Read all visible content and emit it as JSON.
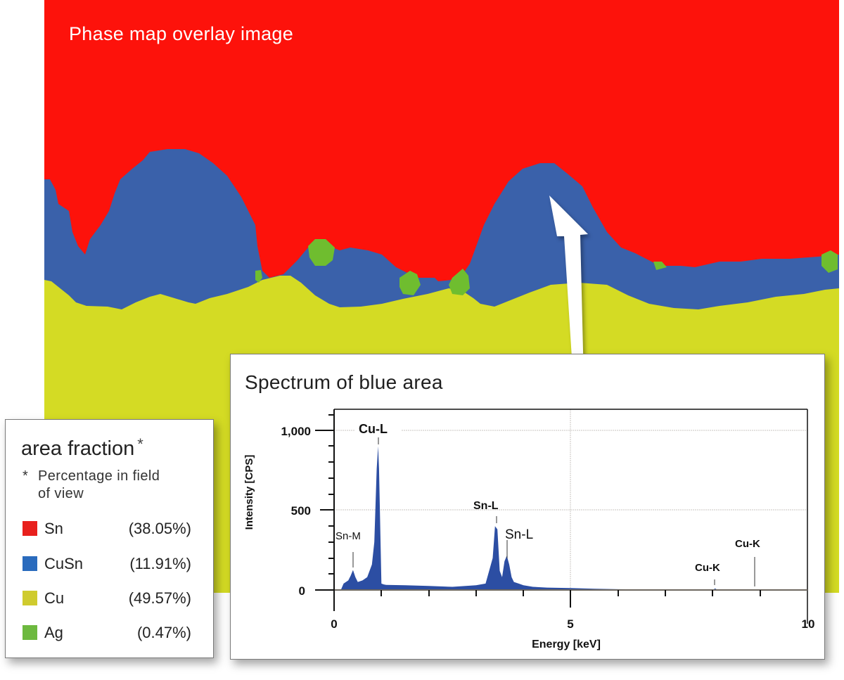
{
  "phase_map": {
    "title": "Phase map overlay image",
    "colors": {
      "Sn": "#fd120b",
      "CuSn": "#3a61aa",
      "Cu": "#d4db24",
      "Ag": "#6fbd2f"
    }
  },
  "legend": {
    "title": "area fraction",
    "title_mark": "*",
    "note_mark": "*",
    "note_line1": "Percentage in field",
    "note_line2": "of view",
    "items": [
      {
        "label": "Sn",
        "value": "(38.05%)",
        "color": "#e8201d"
      },
      {
        "label": "CuSn",
        "value": "(11.91%)",
        "color": "#2a6bbd"
      },
      {
        "label": "Cu",
        "value": "(49.57%)",
        "color": "#cfcb2e"
      },
      {
        "label": "Ag",
        "value": "(0.47%)",
        "color": "#6db93f"
      }
    ]
  },
  "spectrum": {
    "title": "Spectrum of blue area",
    "arrow": "arrow pointing from spectrum panel to blue area"
  },
  "chart_data": {
    "type": "area",
    "title": "Spectrum of blue area",
    "xlabel": "Energy [keV]",
    "ylabel": "Intensity [CPS]",
    "xlim": [
      0,
      10
    ],
    "ylim": [
      0,
      1000
    ],
    "x_ticks": [
      "0",
      "5",
      "10"
    ],
    "y_ticks": [
      "0",
      "500",
      "1,000"
    ],
    "grid": true,
    "series_color": "#2c4ea3",
    "x": [
      0.15,
      0.2,
      0.3,
      0.35,
      0.4,
      0.45,
      0.5,
      0.6,
      0.7,
      0.8,
      0.85,
      0.9,
      0.93,
      0.95,
      1.0,
      1.05,
      1.1,
      1.5,
      2.0,
      2.5,
      3.0,
      3.2,
      3.35,
      3.4,
      3.45,
      3.5,
      3.55,
      3.6,
      3.65,
      3.7,
      3.75,
      3.8,
      3.9,
      4.0,
      4.2,
      4.5,
      5.0,
      5.5,
      6.0,
      7.0,
      7.2,
      8.0,
      8.05,
      8.1,
      9.0,
      10.0
    ],
    "values": [
      5,
      40,
      60,
      90,
      125,
      80,
      50,
      60,
      80,
      160,
      300,
      760,
      900,
      760,
      40,
      35,
      32,
      30,
      25,
      20,
      30,
      40,
      200,
      400,
      380,
      120,
      80,
      180,
      215,
      160,
      80,
      50,
      40,
      30,
      20,
      15,
      12,
      8,
      5,
      3,
      0,
      0,
      10,
      0,
      0,
      0
    ],
    "peaks": [
      {
        "label": "Sn-M",
        "energy": 0.41,
        "bold": false
      },
      {
        "label": "Cu-L",
        "energy": 0.93,
        "bold": true
      },
      {
        "label": "Sn-L",
        "energy": 3.44,
        "bold": true
      },
      {
        "label": "Sn-L",
        "energy": 3.66,
        "bold": false
      },
      {
        "label": "Cu-K",
        "energy": 8.05,
        "bold": true
      },
      {
        "label": "Cu-K",
        "energy": 8.9,
        "bold": true
      }
    ]
  }
}
